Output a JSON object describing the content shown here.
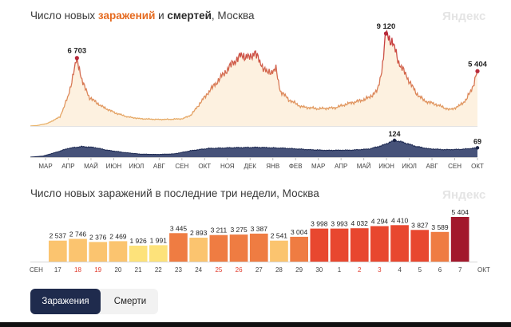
{
  "page": {
    "title1_part1": "Число новых ",
    "title1_infections": "заражений",
    "title1_part2": " и ",
    "title1_deaths": "смертей",
    "title1_part3": ", Москва",
    "logo": "Яндекс",
    "title2": "Число новых заражений в последние три недели, Москва",
    "tabs": {
      "infections": "Заражения",
      "deaths": "Смерти"
    }
  },
  "chart_data": [
    {
      "type": "area",
      "title": "Число новых заражений и смертей, Москва",
      "x_ticks": [
        "МАР",
        "АПР",
        "МАЙ",
        "ИЮН",
        "ИЮЛ",
        "АВГ",
        "СЕН",
        "ОКТ",
        "НОЯ",
        "ДЕК",
        "ЯНВ",
        "ФЕВ",
        "МАР",
        "АПР",
        "МАЙ",
        "ИЮН",
        "ИЮЛ",
        "АВГ",
        "СЕН",
        "ОКТ"
      ],
      "series": [
        {
          "metric": "infections",
          "peaks": [
            {
              "label": "6 703",
              "value": 6703
            },
            {
              "label": "9 120",
              "value": 9120
            },
            {
              "label": "5 404",
              "value": 5404
            }
          ]
        },
        {
          "metric": "deaths",
          "peaks": [
            {
              "label": "124",
              "value": 124
            },
            {
              "label": "69",
              "value": 69
            }
          ]
        }
      ],
      "infections_anchor_points": [
        [
          0,
          0
        ],
        [
          8,
          50
        ],
        [
          20,
          250
        ],
        [
          35,
          900
        ],
        [
          45,
          3000
        ],
        [
          55,
          6703
        ],
        [
          62,
          4200
        ],
        [
          70,
          2800
        ],
        [
          85,
          1900
        ],
        [
          100,
          1300
        ],
        [
          115,
          900
        ],
        [
          130,
          720
        ],
        [
          150,
          650
        ],
        [
          165,
          660
        ],
        [
          180,
          720
        ],
        [
          190,
          1100
        ],
        [
          200,
          2200
        ],
        [
          210,
          3300
        ],
        [
          220,
          4300
        ],
        [
          230,
          5300
        ],
        [
          240,
          6300
        ],
        [
          250,
          7000
        ],
        [
          260,
          6700
        ],
        [
          265,
          7400
        ],
        [
          270,
          6400
        ],
        [
          280,
          5200
        ],
        [
          290,
          5600
        ],
        [
          295,
          3500
        ],
        [
          305,
          2600
        ],
        [
          320,
          1900
        ],
        [
          340,
          1700
        ],
        [
          360,
          1800
        ],
        [
          375,
          2200
        ],
        [
          390,
          2500
        ],
        [
          400,
          2800
        ],
        [
          410,
          3500
        ],
        [
          415,
          5500
        ],
        [
          420,
          9120
        ],
        [
          428,
          8200
        ],
        [
          435,
          6300
        ],
        [
          445,
          4800
        ],
        [
          455,
          3300
        ],
        [
          465,
          2500
        ],
        [
          480,
          2100
        ],
        [
          495,
          1600
        ],
        [
          505,
          1900
        ],
        [
          515,
          2600
        ],
        [
          523,
          4000
        ],
        [
          528,
          5404
        ]
      ],
      "deaths_anchor_points": [
        [
          0,
          0
        ],
        [
          15,
          8
        ],
        [
          30,
          35
        ],
        [
          45,
          65
        ],
        [
          60,
          78
        ],
        [
          75,
          72
        ],
        [
          90,
          52
        ],
        [
          110,
          35
        ],
        [
          130,
          22
        ],
        [
          150,
          20
        ],
        [
          170,
          24
        ],
        [
          190,
          48
        ],
        [
          210,
          64
        ],
        [
          240,
          70
        ],
        [
          270,
          72
        ],
        [
          300,
          66
        ],
        [
          330,
          55
        ],
        [
          350,
          50
        ],
        [
          380,
          52
        ],
        [
          400,
          60
        ],
        [
          415,
          85
        ],
        [
          430,
          124
        ],
        [
          440,
          110
        ],
        [
          455,
          80
        ],
        [
          470,
          62
        ],
        [
          490,
          55
        ],
        [
          510,
          58
        ],
        [
          528,
          69
        ]
      ]
    },
    {
      "type": "bar",
      "title": "Число новых заражений в последние три недели, Москва",
      "x_month_start": "СЕН",
      "x_month_end": "ОКТ",
      "categories": [
        "17",
        "18",
        "19",
        "20",
        "21",
        "22",
        "23",
        "24",
        "25",
        "26",
        "27",
        "28",
        "29",
        "30",
        "1",
        "2",
        "3",
        "4",
        "5",
        "6",
        "7"
      ],
      "weekend_categories": [
        "18",
        "19",
        "25",
        "26",
        "2",
        "3"
      ],
      "values": [
        2537,
        2746,
        2376,
        2469,
        1926,
        1991,
        3445,
        2893,
        3211,
        3275,
        3387,
        2541,
        3004,
        3998,
        3993,
        4032,
        4294,
        4410,
        3827,
        3589,
        5404
      ],
      "value_labels": [
        "2 537",
        "2 746",
        "2 376",
        "2 469",
        "1 926",
        "1 991",
        "3 445",
        "2 893",
        "3 211",
        "3 275",
        "3 387",
        "2 541",
        "3 004",
        "3 998",
        "3 993",
        "4 032",
        "4 294",
        "4 410",
        "3 827",
        "3 589",
        "5 404"
      ],
      "ylim": [
        0,
        5404
      ],
      "colors": {
        "low": "#fde27a",
        "mid": "#f6a056",
        "high": "#e8472f",
        "peak": "#a2182c",
        "weekend_label": "#e0392b"
      }
    }
  ],
  "colors": {
    "infections_fill": "#fdf1e0",
    "infections_line_start": "#e9b46a",
    "infections_line_end": "#c3303a",
    "deaths_fill": "#2c3a66",
    "deaths_line": "#1e2a52",
    "peak_dot": "#b82a3a"
  }
}
